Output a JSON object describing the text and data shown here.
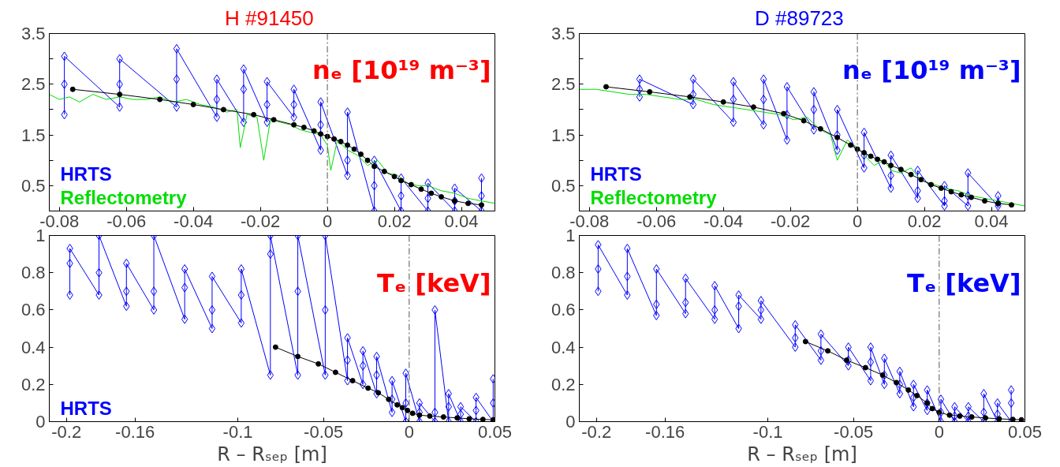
{
  "chart_data": [
    {
      "type": "line",
      "title": "H  #91450",
      "legend": false,
      "xlim": [
        -0.083,
        0.05
      ],
      "ylim": [
        0,
        3.5
      ],
      "xticks": [
        -0.08,
        -0.06,
        -0.04,
        -0.02,
        0,
        0.02,
        0.04
      ],
      "yticks": [
        0.5,
        {
          "value": 1,
          "label": null
        },
        1.5,
        {
          "value": 2,
          "label": null
        },
        2.5,
        {
          "value": 3,
          "label": null
        },
        3.5
      ],
      "annotations": [
        "nₑ [10¹⁹ m⁻³]"
      ],
      "ref_lines": [
        {
          "axis": "x",
          "value": 0,
          "label": null,
          "color": "#555555",
          "line_style": "dashed"
        }
      ],
      "series": [
        {
          "name": "HRTS",
          "marker": "diamond",
          "color": "#0000ff",
          "x": [
            -0.0785,
            -0.0785,
            -0.0785,
            -0.062,
            -0.062,
            -0.062,
            -0.045,
            -0.045,
            -0.045,
            -0.033,
            -0.033,
            -0.033,
            -0.025,
            -0.025,
            -0.025,
            -0.018,
            -0.018,
            -0.018,
            -0.01,
            -0.01,
            -0.01,
            -0.002,
            -0.002,
            -0.002,
            0.006,
            0.006,
            0.006,
            0.014,
            0.014,
            0.014,
            0.022,
            0.022,
            0.022,
            0.03,
            0.03,
            0.03,
            0.038,
            0.038,
            0.038,
            0.046,
            0.046,
            0.046
          ],
          "values": [
            1.9,
            2.5,
            3.05,
            2.05,
            2.5,
            3.0,
            2.05,
            2.6,
            3.2,
            1.85,
            2.2,
            2.6,
            1.75,
            2.4,
            2.8,
            1.75,
            2.1,
            2.55,
            1.85,
            2.1,
            2.4,
            1.2,
            1.7,
            2.15,
            0.7,
            1.0,
            1.95,
            0,
            0.5,
            1.0,
            0,
            0.3,
            0.65,
            0,
            0.25,
            0.55,
            0,
            0.2,
            0.45,
            0,
            0.3,
            0.65
          ]
        },
        {
          "name": "Reflectometry",
          "marker": "none",
          "color": "#00dd00",
          "x": [
            -0.083,
            -0.08,
            -0.077,
            -0.074,
            -0.07,
            -0.066,
            -0.062,
            -0.058,
            -0.054,
            -0.05,
            -0.046,
            -0.042,
            -0.038,
            -0.034,
            -0.03,
            -0.027,
            -0.026,
            -0.024,
            -0.021,
            -0.019,
            -0.017,
            -0.014,
            -0.011,
            -0.008,
            -0.005,
            -0.002,
            0,
            0.001,
            0.003,
            0.006,
            0.009,
            0.012,
            0.015,
            0.018,
            0.021,
            0.024,
            0.027,
            0.03,
            0.034,
            0.038,
            0.042,
            0.046,
            0.05
          ],
          "values": [
            2.3,
            2.2,
            2.25,
            2.15,
            2.3,
            2.2,
            2.25,
            2.2,
            2.2,
            2.25,
            2.15,
            2.2,
            2.1,
            2.05,
            1.95,
            2.0,
            1.25,
            1.9,
            1.85,
            1.0,
            1.8,
            1.75,
            1.7,
            1.6,
            1.55,
            1.5,
            1.3,
            0.8,
            1.4,
            1.2,
            1.1,
            0.9,
            1.0,
            0.75,
            0.7,
            0.55,
            0.5,
            0.5,
            0.4,
            0.35,
            0.25,
            0.2,
            0.15
          ]
        },
        {
          "marker": "circle",
          "color": "#000000",
          "x": [
            -0.076,
            -0.062,
            -0.05,
            -0.04,
            -0.031,
            -0.022,
            -0.016,
            -0.01,
            -0.007,
            -0.004,
            -0.002,
            0,
            0.002,
            0.004,
            0.006,
            0.008,
            0.01,
            0.012,
            0.014,
            0.017,
            0.02,
            0.022,
            0.025,
            0.028,
            0.031,
            0.034,
            0.038,
            0.042,
            0.046
          ],
          "values": [
            2.4,
            2.3,
            2.2,
            2.1,
            2.0,
            1.9,
            1.8,
            1.7,
            1.65,
            1.58,
            1.52,
            1.47,
            1.42,
            1.37,
            1.3,
            1.22,
            1.12,
            1.0,
            0.88,
            0.78,
            0.68,
            0.6,
            0.52,
            0.43,
            0.35,
            0.28,
            0.2,
            0.15,
            0.12
          ]
        }
      ]
    },
    {
      "type": "line",
      "title": "D  #89723",
      "legend": false,
      "xlim": [
        -0.083,
        0.05
      ],
      "ylim": [
        0,
        3.5
      ],
      "xticks": [
        -0.08,
        -0.06,
        -0.04,
        -0.02,
        0,
        0.02,
        0.04
      ],
      "yticks": [
        0.5,
        {
          "value": 1,
          "label": null
        },
        1.5,
        {
          "value": 2,
          "label": null
        },
        2.5,
        {
          "value": 3,
          "label": null
        },
        3.5
      ],
      "annotations": [
        "nₑ [10¹⁹ m⁻³]"
      ],
      "ref_lines": [
        {
          "axis": "x",
          "value": 0,
          "label": null,
          "color": "#555555",
          "line_style": "dashed"
        }
      ],
      "series": [
        {
          "name": "HRTS",
          "marker": "diamond",
          "color": "#0000ff",
          "x": [
            -0.065,
            -0.065,
            -0.065,
            -0.049,
            -0.049,
            -0.049,
            -0.037,
            -0.037,
            -0.037,
            -0.028,
            -0.028,
            -0.028,
            -0.021,
            -0.021,
            -0.021,
            -0.013,
            -0.013,
            -0.013,
            -0.006,
            -0.006,
            -0.006,
            0.002,
            0.002,
            0.002,
            0.01,
            0.01,
            0.01,
            0.018,
            0.018,
            0.018,
            0.026,
            0.026,
            0.026,
            0.033,
            0.033,
            0.033,
            0.042,
            0.042,
            0.042
          ],
          "values": [
            2.25,
            2.4,
            2.6,
            2.1,
            2.3,
            2.6,
            1.75,
            2.2,
            2.55,
            1.7,
            2.2,
            2.6,
            1.4,
            1.9,
            2.45,
            1.6,
            2.0,
            2.35,
            1.2,
            1.5,
            2.0,
            0.85,
            1.1,
            1.55,
            0.45,
            0.7,
            1.1,
            0.25,
            0.4,
            0.8,
            0.1,
            0.2,
            0.5,
            0.1,
            0.3,
            0.75,
            0.1,
            0.15,
            0.3
          ]
        },
        {
          "name": "Reflectometry",
          "marker": "none",
          "color": "#00dd00",
          "x": [
            -0.083,
            -0.078,
            -0.073,
            -0.068,
            -0.063,
            -0.058,
            -0.053,
            -0.048,
            -0.043,
            -0.038,
            -0.033,
            -0.028,
            -0.023,
            -0.019,
            -0.015,
            -0.011,
            -0.008,
            -0.006,
            -0.003,
            0,
            0.002,
            0.005,
            0.008,
            0.01,
            0.013,
            0.016,
            0.019,
            0.022,
            0.026,
            0.03,
            0.034,
            0.038,
            0.042,
            0.046,
            0.05
          ],
          "values": [
            2.4,
            2.4,
            2.35,
            2.3,
            2.3,
            2.25,
            2.2,
            2.2,
            2.1,
            2.05,
            2.0,
            1.95,
            1.9,
            1.8,
            1.85,
            1.6,
            1.5,
            1.0,
            1.4,
            1.25,
            1.1,
            0.9,
            1.0,
            0.8,
            0.75,
            0.85,
            0.6,
            0.55,
            0.45,
            0.4,
            0.3,
            0.25,
            0.2,
            0.15,
            0.1
          ]
        },
        {
          "marker": "circle",
          "color": "#000000",
          "x": [
            -0.075,
            -0.062,
            -0.05,
            -0.04,
            -0.031,
            -0.022,
            -0.016,
            -0.011,
            -0.006,
            -0.002,
            0,
            0.002,
            0.004,
            0.006,
            0.008,
            0.01,
            0.013,
            0.016,
            0.019,
            0.022,
            0.025,
            0.028,
            0.031,
            0.034,
            0.038,
            0.042,
            0.046
          ],
          "values": [
            2.45,
            2.35,
            2.25,
            2.15,
            2.05,
            1.92,
            1.78,
            1.62,
            1.45,
            1.3,
            1.22,
            1.15,
            1.08,
            1.02,
            0.97,
            0.9,
            0.82,
            0.72,
            0.62,
            0.52,
            0.45,
            0.38,
            0.32,
            0.27,
            0.2,
            0.15,
            0.12
          ]
        }
      ]
    },
    {
      "type": "line",
      "xlabel": "R – Rₛₑₚ [m]",
      "legend": false,
      "xlim": [
        -0.21,
        0.05
      ],
      "ylim": [
        0,
        1
      ],
      "xticks": [
        -0.2,
        -0.16,
        -0.1,
        -0.05,
        0,
        0.05
      ],
      "yticks": [
        0,
        0.2,
        0.4,
        0.6,
        0.8,
        1
      ],
      "annotations": [
        "Tₑ [keV]"
      ],
      "ref_lines": [
        {
          "axis": "x",
          "value": 0,
          "label": null,
          "color": "#555555",
          "line_style": "dashed"
        }
      ],
      "series": [
        {
          "name": "HRTS",
          "marker": "diamond",
          "color": "#0000ff",
          "x": [
            -0.198,
            -0.198,
            -0.198,
            -0.181,
            -0.181,
            -0.181,
            -0.165,
            -0.165,
            -0.165,
            -0.149,
            -0.149,
            -0.149,
            -0.131,
            -0.131,
            -0.131,
            -0.115,
            -0.115,
            -0.115,
            -0.098,
            -0.098,
            -0.098,
            -0.081,
            -0.081,
            -0.081,
            -0.065,
            -0.065,
            -0.065,
            -0.049,
            -0.049,
            -0.049,
            -0.036,
            -0.036,
            -0.036,
            -0.027,
            -0.027,
            -0.027,
            -0.019,
            -0.019,
            -0.019,
            -0.01,
            -0.01,
            -0.01,
            -0.002,
            -0.002,
            -0.002,
            0.006,
            0.006,
            0.006,
            0.015,
            0.015,
            0.015,
            0.023,
            0.023,
            0.023,
            0.03,
            0.03,
            0.03,
            0.039,
            0.039,
            0.039,
            0.049,
            0.049,
            0.049
          ],
          "values": [
            0.68,
            0.85,
            0.93,
            0.68,
            0.8,
            1.0,
            0.62,
            0.7,
            0.85,
            0.6,
            0.7,
            1.0,
            0.55,
            0.72,
            0.82,
            0.5,
            0.6,
            0.78,
            0.53,
            0.68,
            0.82,
            0.25,
            0.9,
            1.0,
            0.25,
            0.7,
            1.0,
            0.25,
            0.6,
            1.0,
            0.22,
            0.33,
            0.45,
            0.2,
            0.3,
            0.38,
            0.15,
            0.25,
            0.35,
            0.05,
            0.12,
            0.22,
            0,
            0.1,
            0.26,
            0,
            0.05,
            0.1,
            0,
            0.05,
            0.6,
            0,
            0.08,
            0.15,
            0,
            0.04,
            0.08,
            0,
            0.06,
            0.13,
            0,
            0.1,
            0.23
          ]
        },
        {
          "marker": "circle",
          "color": "#000000",
          "x": [
            -0.078,
            -0.065,
            -0.053,
            -0.043,
            -0.033,
            -0.024,
            -0.018,
            -0.012,
            -0.007,
            -0.004,
            -0.001,
            0.002,
            0.006,
            0.012,
            0.02,
            0.028,
            0.035,
            0.043,
            0.049
          ],
          "values": [
            0.4,
            0.35,
            0.31,
            0.265,
            0.22,
            0.18,
            0.155,
            0.12,
            0.09,
            0.075,
            0.06,
            0.045,
            0.035,
            0.03,
            0.025,
            0.02,
            0.015,
            0.012,
            0.01
          ]
        }
      ]
    },
    {
      "type": "line",
      "xlabel": "R – Rₛₑₚ [m]",
      "legend": false,
      "xlim": [
        -0.21,
        0.05
      ],
      "ylim": [
        0,
        1
      ],
      "xticks": [
        -0.2,
        -0.16,
        -0.1,
        -0.05,
        0,
        0.05
      ],
      "yticks": [
        0,
        0.2,
        0.4,
        0.6,
        0.8,
        1
      ],
      "annotations": [
        "Tₑ [keV]"
      ],
      "ref_lines": [
        {
          "axis": "x",
          "value": 0,
          "label": null,
          "color": "#555555",
          "line_style": "dashed"
        }
      ],
      "series": [
        {
          "marker": "diamond",
          "color": "#0000ff",
          "x": [
            -0.199,
            -0.199,
            -0.199,
            -0.182,
            -0.182,
            -0.182,
            -0.165,
            -0.165,
            -0.165,
            -0.148,
            -0.148,
            -0.148,
            -0.131,
            -0.131,
            -0.131,
            -0.117,
            -0.117,
            -0.117,
            -0.104,
            -0.104,
            -0.104,
            -0.084,
            -0.084,
            -0.084,
            -0.069,
            -0.069,
            -0.069,
            -0.053,
            -0.053,
            -0.053,
            -0.04,
            -0.04,
            -0.04,
            -0.032,
            -0.032,
            -0.032,
            -0.023,
            -0.023,
            -0.023,
            -0.015,
            -0.015,
            -0.015,
            -0.007,
            -0.007,
            -0.007,
            0.001,
            0.001,
            0.001,
            0.009,
            0.009,
            0.009,
            0.017,
            0.017,
            0.017,
            0.026,
            0.026,
            0.026,
            0.034,
            0.034,
            0.034,
            0.042,
            0.042,
            0.042
          ],
          "values": [
            0.7,
            0.82,
            0.95,
            0.68,
            0.78,
            0.93,
            0.57,
            0.63,
            0.82,
            0.58,
            0.64,
            0.77,
            0.55,
            0.6,
            0.73,
            0.5,
            0.62,
            0.68,
            0.55,
            0.6,
            0.65,
            0.4,
            0.45,
            0.52,
            0.33,
            0.38,
            0.47,
            0.3,
            0.33,
            0.4,
            0.22,
            0.32,
            0.4,
            0.2,
            0.25,
            0.34,
            0.15,
            0.2,
            0.27,
            0.08,
            0.13,
            0.2,
            0.06,
            0.1,
            0.17,
            0,
            0.05,
            0.12,
            0,
            0.03,
            0.08,
            0,
            0.03,
            0.08,
            0,
            0.05,
            0.15,
            0,
            0.04,
            0.1,
            0,
            0.1,
            0.17
          ]
        },
        {
          "marker": "circle",
          "color": "#000000",
          "x": [
            -0.078,
            -0.065,
            -0.054,
            -0.043,
            -0.033,
            -0.025,
            -0.018,
            -0.013,
            -0.007,
            -0.004,
            0,
            0.006,
            0.012,
            0.019,
            0.027,
            0.035,
            0.043,
            0.048
          ],
          "values": [
            0.43,
            0.38,
            0.33,
            0.29,
            0.25,
            0.21,
            0.17,
            0.14,
            0.1,
            0.07,
            0.05,
            0.035,
            0.03,
            0.025,
            0.02,
            0.015,
            0.012,
            0.01
          ]
        }
      ]
    }
  ]
}
